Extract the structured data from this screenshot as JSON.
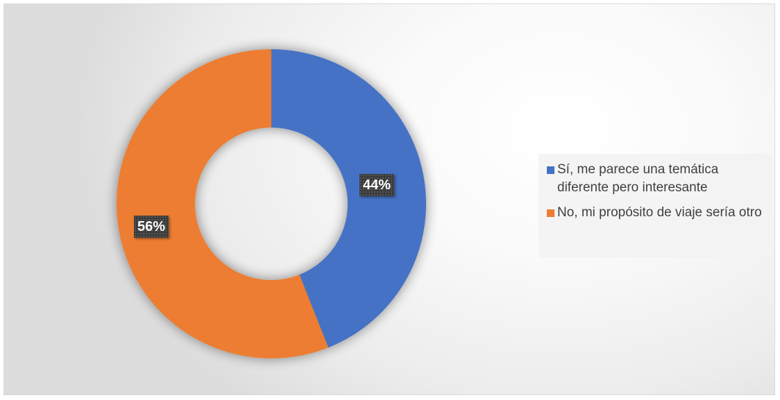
{
  "chart_data": {
    "type": "pie",
    "variant": "donut",
    "title": "",
    "slices": [
      {
        "label": "Sí, me parece una temática diferente pero interesante",
        "value": 44,
        "display": "44%",
        "color": "#4472C4"
      },
      {
        "label": "No, mi propósito de viaje sería otro",
        "value": 56,
        "display": "56%",
        "color": "#ED7D31"
      }
    ],
    "legend_position": "right"
  }
}
